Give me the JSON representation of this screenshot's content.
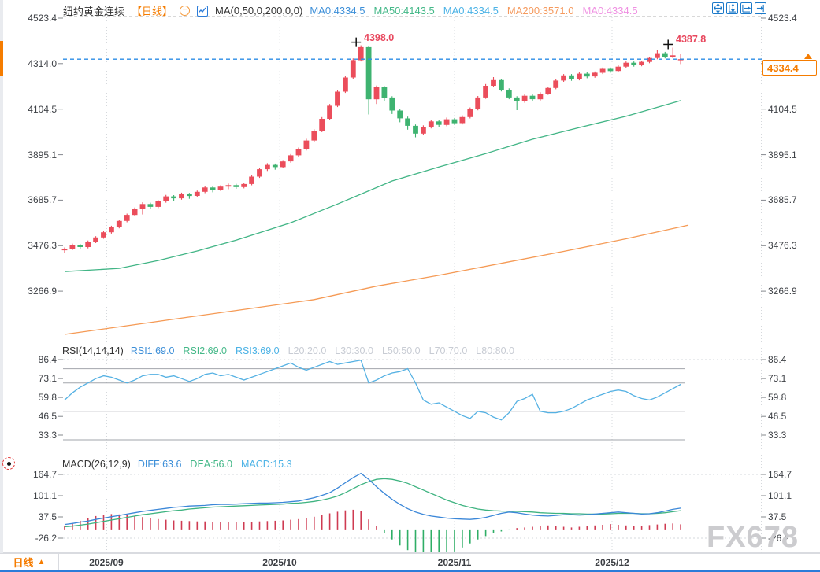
{
  "header": {
    "symbol": "纽约黄金连续",
    "interval_tag": "【日线】",
    "collapse_icon": "circled-minus",
    "indicator_icon": "candlestick-chart-icon",
    "ma_formula": "MA(0,50,0,200,0,0)",
    "ma_values": [
      {
        "label": "MA0:4334.5",
        "color": "#3d8fd8"
      },
      {
        "label": "MA50:4143.5",
        "color": "#44b888"
      },
      {
        "label": "MA0:4334.5",
        "color": "#4db3e6"
      },
      {
        "label": "MA200:3571.0",
        "color": "#f59a5e"
      },
      {
        "label": "MA0:4334.5",
        "color": "#ef90e2"
      }
    ]
  },
  "toolbar": {
    "icons": [
      "pan-icon",
      "auto-scale-y-icon",
      "auto-scale-x-icon",
      "goto-latest-icon"
    ],
    "accent": "#1b79c9"
  },
  "rsi_header": {
    "formula": "RSI(14,14,14)",
    "values": [
      {
        "label": "RSI1:69.0",
        "color": "#3d8fd8"
      },
      {
        "label": "RSI2:69.0",
        "color": "#44b888"
      },
      {
        "label": "RSI3:69.0",
        "color": "#4db3e6"
      },
      {
        "label": "L20:20.0",
        "color": "#c8ccd4"
      },
      {
        "label": "L30:30.0",
        "color": "#c8ccd4"
      },
      {
        "label": "L50:50.0",
        "color": "#c8ccd4"
      },
      {
        "label": "L70:70.0",
        "color": "#c8ccd4"
      },
      {
        "label": "L80:80.0",
        "color": "#c8ccd4"
      }
    ]
  },
  "macd_header": {
    "formula": "MACD(26,12,9)",
    "values": [
      {
        "label": "DIFF:63.6",
        "color": "#3d8fd8"
      },
      {
        "label": "DEA:56.0",
        "color": "#44b888"
      },
      {
        "label": "MACD:15.3",
        "color": "#4db3e6"
      }
    ]
  },
  "price_tag": {
    "value": "4334.4",
    "color": "#f57c00"
  },
  "bottom_bar": {
    "interval": "日线",
    "arrow": "▲",
    "dates": [
      "2025/09",
      "2025/10",
      "2025/11",
      "2025/12"
    ]
  },
  "watermark": "FX678",
  "colors": {
    "up": "#eb4d5b",
    "down": "#3eb370",
    "ma50": "#42b586",
    "ma200": "#f59a55",
    "rsi_line": "#55b1e3",
    "diff_line": "#3b87d8",
    "dea_line": "#3eb380",
    "hist_pos": "#cf3b52",
    "hist_neg": "#2fae66",
    "price_dash": "#2b8ce6",
    "grid": "#a2a5ab",
    "dotted": "#d5d8dc",
    "tick": "#85888e"
  },
  "chart_data": {
    "type": "candlestick+indicators",
    "title": "纽约黄金连续 日线",
    "current_price": 4334.4,
    "panels": {
      "main": {
        "y_ticks": [
          4523.4,
          4314.0,
          4104.5,
          3895.1,
          3685.7,
          3476.3,
          3266.9
        ],
        "candles": [
          [
            3455,
            3468,
            3442,
            3462
          ],
          [
            3462,
            3486,
            3456,
            3480
          ],
          [
            3480,
            3484,
            3462,
            3470
          ],
          [
            3470,
            3500,
            3464,
            3494
          ],
          [
            3494,
            3520,
            3488,
            3514
          ],
          [
            3514,
            3544,
            3508,
            3538
          ],
          [
            3538,
            3568,
            3532,
            3562
          ],
          [
            3562,
            3596,
            3556,
            3590
          ],
          [
            3590,
            3624,
            3584,
            3618
          ],
          [
            3618,
            3652,
            3612,
            3645
          ],
          [
            3645,
            3676,
            3620,
            3668
          ],
          [
            3668,
            3674,
            3644,
            3655
          ],
          [
            3655,
            3686,
            3649,
            3680
          ],
          [
            3680,
            3710,
            3674,
            3703
          ],
          [
            3703,
            3709,
            3682,
            3694
          ],
          [
            3694,
            3720,
            3688,
            3713
          ],
          [
            3713,
            3719,
            3692,
            3705
          ],
          [
            3705,
            3730,
            3699,
            3724
          ],
          [
            3724,
            3750,
            3718,
            3744
          ],
          [
            3744,
            3750,
            3722,
            3734
          ],
          [
            3734,
            3754,
            3728,
            3748
          ],
          [
            3748,
            3762,
            3736,
            3755
          ],
          [
            3755,
            3761,
            3738,
            3746
          ],
          [
            3746,
            3766,
            3740,
            3760
          ],
          [
            3760,
            3800,
            3754,
            3794
          ],
          [
            3794,
            3834,
            3788,
            3828
          ],
          [
            3828,
            3856,
            3820,
            3848
          ],
          [
            3848,
            3854,
            3826,
            3838
          ],
          [
            3838,
            3870,
            3832,
            3864
          ],
          [
            3864,
            3898,
            3858,
            3892
          ],
          [
            3892,
            3928,
            3886,
            3920
          ],
          [
            3920,
            3968,
            3914,
            3960
          ],
          [
            3960,
            4012,
            3954,
            4005
          ],
          [
            4005,
            4068,
            3999,
            4060
          ],
          [
            4060,
            4128,
            4054,
            4120
          ],
          [
            4120,
            4192,
            4114,
            4185
          ],
          [
            4185,
            4258,
            4179,
            4250
          ],
          [
            4250,
            4338,
            4244,
            4330
          ],
          [
            4330,
            4398,
            4324,
            4390
          ],
          [
            4390,
            4394,
            4080,
            4150
          ],
          [
            4150,
            4213,
            4128,
            4205
          ],
          [
            4205,
            4211,
            4140,
            4158
          ],
          [
            4158,
            4164,
            4082,
            4098
          ],
          [
            4098,
            4104,
            4044,
            4062
          ],
          [
            4062,
            4070,
            4010,
            4028
          ],
          [
            4028,
            4034,
            3975,
            3992
          ],
          [
            3992,
            4030,
            3986,
            4022
          ],
          [
            4022,
            4056,
            4016,
            4048
          ],
          [
            4048,
            4054,
            4024,
            4032
          ],
          [
            4032,
            4066,
            4026,
            4058
          ],
          [
            4058,
            4064,
            4032,
            4040
          ],
          [
            4040,
            4076,
            4034,
            4068
          ],
          [
            4068,
            4112,
            4062,
            4105
          ],
          [
            4105,
            4165,
            4099,
            4158
          ],
          [
            4158,
            4220,
            4152,
            4212
          ],
          [
            4212,
            4252,
            4206,
            4238
          ],
          [
            4238,
            4244,
            4186,
            4194
          ],
          [
            4194,
            4200,
            4150,
            4158
          ],
          [
            4158,
            4164,
            4100,
            4140
          ],
          [
            4140,
            4172,
            4134,
            4166
          ],
          [
            4166,
            4172,
            4142,
            4150
          ],
          [
            4150,
            4182,
            4144,
            4176
          ],
          [
            4176,
            4208,
            4170,
            4202
          ],
          [
            4202,
            4242,
            4196,
            4236
          ],
          [
            4236,
            4266,
            4230,
            4260
          ],
          [
            4260,
            4266,
            4235,
            4243
          ],
          [
            4243,
            4274,
            4237,
            4268
          ],
          [
            4268,
            4274,
            4247,
            4255
          ],
          [
            4255,
            4278,
            4249,
            4272
          ],
          [
            4272,
            4296,
            4266,
            4290
          ],
          [
            4290,
            4296,
            4272,
            4280
          ],
          [
            4280,
            4306,
            4274,
            4300
          ],
          [
            4300,
            4324,
            4294,
            4318
          ],
          [
            4318,
            4324,
            4300,
            4308
          ],
          [
            4308,
            4328,
            4302,
            4322
          ],
          [
            4322,
            4346,
            4316,
            4340
          ],
          [
            4340,
            4375,
            4334,
            4362
          ],
          [
            4362,
            4368,
            4338,
            4345
          ],
          [
            4345,
            4387.8,
            4339,
            4352
          ],
          [
            4330,
            4360,
            4312,
            4334.4
          ]
        ],
        "ma50_points": [
          [
            0,
            3357
          ],
          [
            7,
            3372
          ],
          [
            12,
            3408
          ],
          [
            17,
            3452
          ],
          [
            22,
            3502
          ],
          [
            29,
            3582
          ],
          [
            35,
            3668
          ],
          [
            42,
            3774
          ],
          [
            48,
            3838
          ],
          [
            54,
            3900
          ],
          [
            60,
            3966
          ],
          [
            66,
            4020
          ],
          [
            72,
            4072
          ],
          [
            79,
            4143.5
          ]
        ],
        "ma200_points": [
          [
            0,
            3068
          ],
          [
            8,
            3108
          ],
          [
            16,
            3148
          ],
          [
            24,
            3188
          ],
          [
            32,
            3228
          ],
          [
            40,
            3290
          ],
          [
            48,
            3340
          ],
          [
            56,
            3395
          ],
          [
            64,
            3450
          ],
          [
            72,
            3508
          ],
          [
            80,
            3571
          ]
        ],
        "markers": [
          {
            "index": 38,
            "price": 4398.0,
            "label": "4398.0"
          },
          {
            "index": 78,
            "price": 4387.8,
            "label": "4387.8"
          }
        ],
        "price_line": 4334.4
      },
      "rsi": {
        "y_ticks": [
          86.4,
          73.1,
          59.8,
          46.5,
          33.3
        ],
        "gridlines": [
          80,
          70,
          50,
          30
        ],
        "values": [
          58,
          63,
          67,
          70,
          73,
          75,
          74,
          72,
          70,
          72,
          75,
          76,
          76,
          74,
          75,
          73,
          71,
          73,
          76,
          77,
          75,
          76,
          74,
          72,
          74,
          76,
          78,
          80,
          82,
          84,
          81,
          79,
          81,
          83,
          85,
          83,
          84,
          85,
          86,
          70,
          72,
          75,
          77,
          78,
          80,
          70,
          58,
          55,
          56,
          53,
          50,
          47,
          45,
          50,
          49,
          46,
          44,
          49,
          57,
          59,
          62,
          50,
          49,
          49,
          50,
          52,
          55,
          58,
          60,
          62,
          64,
          65,
          64,
          61,
          59,
          58,
          60,
          63,
          66,
          69
        ]
      },
      "macd": {
        "y_ticks": [
          164.7,
          101.1,
          37.5,
          -26.2
        ],
        "diff": [
          15,
          18,
          22,
          25,
          30,
          34,
          38,
          42,
          46,
          50,
          54,
          57,
          60,
          63,
          66,
          68,
          70,
          71,
          72,
          74,
          75,
          75,
          76,
          77,
          78,
          79,
          79,
          80,
          81,
          83,
          85,
          90,
          95,
          102,
          110,
          124,
          140,
          155,
          168,
          150,
          128,
          108,
          90,
          75,
          62,
          52,
          45,
          40,
          37,
          34,
          32,
          31,
          30,
          32,
          36,
          42,
          48,
          52,
          50,
          46,
          43,
          41,
          40,
          42,
          44,
          44,
          43,
          44,
          46,
          48,
          50,
          52,
          50,
          48,
          46,
          47,
          50,
          55,
          60,
          63.6
        ],
        "dea": [
          8,
          10,
          13,
          16,
          20,
          24,
          28,
          32,
          36,
          40,
          44,
          47,
          50,
          53,
          56,
          58,
          61,
          63,
          65,
          67,
          68,
          69,
          70,
          71,
          72,
          73,
          74,
          75,
          76,
          78,
          79,
          81,
          84,
          88,
          93,
          100,
          110,
          122,
          134,
          143,
          150,
          152,
          150,
          145,
          138,
          128,
          118,
          108,
          98,
          88,
          80,
          72,
          66,
          61,
          58,
          56,
          55,
          55,
          54,
          53,
          52,
          50,
          49,
          48,
          48,
          47,
          47,
          46,
          46,
          46,
          47,
          48,
          48,
          48,
          47,
          47,
          48,
          50,
          53,
          56
        ],
        "hist": [
          10,
          18,
          26,
          34,
          40,
          44,
          46,
          45,
          43,
          40,
          37,
          34,
          31,
          29,
          27,
          26,
          25,
          24,
          24,
          23,
          22,
          21,
          21,
          22,
          23,
          24,
          25,
          26,
          27,
          29,
          31,
          34,
          38,
          43,
          48,
          53,
          57,
          59,
          55,
          30,
          10,
          -12,
          -30,
          -48,
          -62,
          -74,
          -82,
          -88,
          -84,
          -76,
          -66,
          -54,
          -42,
          -30,
          -20,
          -12,
          -6,
          -2,
          4,
          6,
          8,
          10,
          12,
          10,
          8,
          6,
          8,
          10,
          12,
          14,
          16,
          14,
          12,
          10,
          11,
          13,
          15,
          17,
          18,
          15.3
        ]
      }
    },
    "x_axis": {
      "labels": [
        "2025/09",
        "2025/10",
        "2025/11",
        "2025/12"
      ],
      "tick_indices": [
        5.4,
        27.6,
        50.0,
        70.2
      ]
    }
  }
}
